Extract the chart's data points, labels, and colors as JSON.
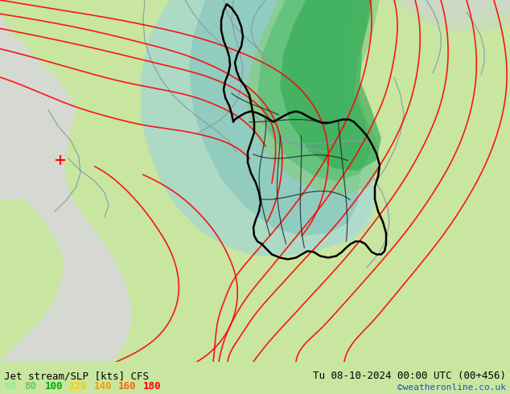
{
  "title_left": "Jet stream/SLP [kts] CFS",
  "title_right": "Tu 08-10-2024 00:00 UTC (00+456)",
  "credit": "©weatheronline.co.uk",
  "legend_values": [
    "60",
    "80",
    "100",
    "120",
    "140",
    "160",
    "180"
  ],
  "legend_colors": [
    "#90ee90",
    "#66cc66",
    "#00aa00",
    "#ffcc00",
    "#ff9900",
    "#ff6600",
    "#ff0000"
  ],
  "bg_color": "#c8e6a0",
  "fig_width": 6.34,
  "fig_height": 4.9,
  "dpi": 100,
  "bottom_bar_color": "#c8e6a0",
  "title_fontsize": 9,
  "credit_fontsize": 8,
  "legend_fontsize": 9,
  "map_bg": "#c8e69a",
  "ocean_color": "#d8d8d8",
  "teal_light": "#a8d8cc",
  "teal_mid": "#88c8bc",
  "green_bright": "#44bb66",
  "green_mid": "#88cc88"
}
